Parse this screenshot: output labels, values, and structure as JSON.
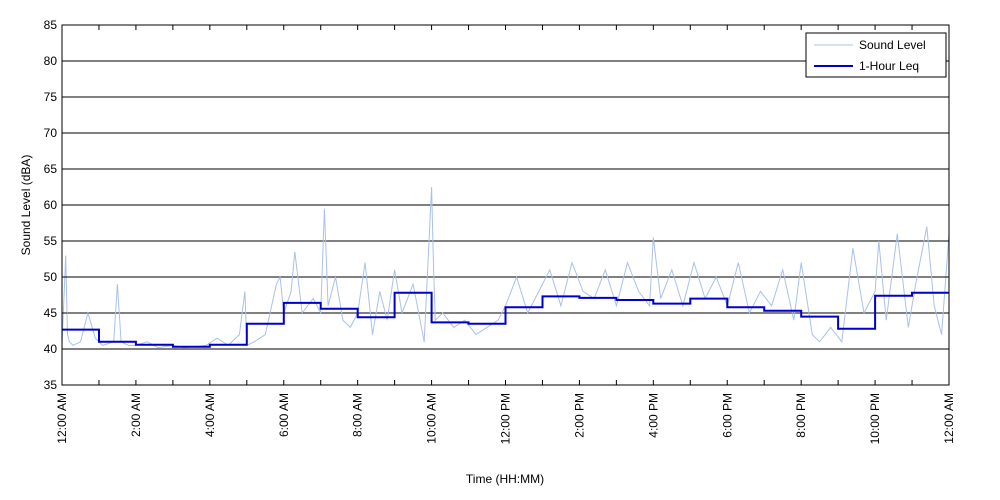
{
  "chart_data": {
    "type": "line",
    "xlabel": "Time (HH:MM)",
    "ylabel": "Sound Level (dBA)",
    "ylim": [
      35,
      85
    ],
    "yticks": [
      35,
      40,
      45,
      50,
      55,
      60,
      65,
      70,
      75,
      80,
      85
    ],
    "xlim": [
      0,
      24
    ],
    "xticks": [
      0,
      1,
      2,
      3,
      4,
      5,
      6,
      7,
      8,
      9,
      10,
      11,
      12,
      13,
      14,
      15,
      16,
      17,
      18,
      19,
      20,
      21,
      22,
      23,
      24
    ],
    "xtick_labels": [
      {
        "hour": 0,
        "label": "12:00 AM"
      },
      {
        "hour": 2,
        "label": "2:00 AM"
      },
      {
        "hour": 4,
        "label": "4:00 AM"
      },
      {
        "hour": 6,
        "label": "6:00 AM"
      },
      {
        "hour": 8,
        "label": "8:00 AM"
      },
      {
        "hour": 10,
        "label": "10:00 AM"
      },
      {
        "hour": 12,
        "label": "12:00 PM"
      },
      {
        "hour": 14,
        "label": "2:00 PM"
      },
      {
        "hour": 16,
        "label": "4:00 PM"
      },
      {
        "hour": 18,
        "label": "6:00 PM"
      },
      {
        "hour": 20,
        "label": "8:00 PM"
      },
      {
        "hour": 22,
        "label": "10:00 PM"
      },
      {
        "hour": 24,
        "label": "12:00 AM"
      }
    ],
    "grid": "horizontal",
    "legend_position": "top-right",
    "series": [
      {
        "name": "Sound Level",
        "color": "#a9c1ea",
        "style": "thin-line",
        "x": [
          0,
          0.1,
          0.15,
          0.2,
          0.3,
          0.5,
          0.7,
          0.9,
          1.1,
          1.4,
          1.5,
          1.6,
          1.8,
          2.0,
          2.3,
          2.6,
          3.0,
          3.3,
          3.6,
          3.9,
          4.2,
          4.5,
          4.8,
          4.95,
          5.0,
          5.2,
          5.5,
          5.8,
          5.9,
          6.0,
          6.2,
          6.3,
          6.5,
          6.8,
          7.0,
          7.1,
          7.2,
          7.4,
          7.6,
          7.8,
          8.0,
          8.2,
          8.4,
          8.6,
          8.8,
          9.0,
          9.2,
          9.5,
          9.8,
          10.0,
          10.05,
          10.1,
          10.3,
          10.6,
          10.9,
          11.2,
          11.5,
          11.8,
          12.0,
          12.3,
          12.6,
          12.9,
          13.2,
          13.5,
          13.8,
          14.1,
          14.4,
          14.7,
          15.0,
          15.3,
          15.6,
          15.9,
          16.0,
          16.2,
          16.5,
          16.8,
          17.1,
          17.4,
          17.7,
          18.0,
          18.3,
          18.6,
          18.9,
          19.2,
          19.5,
          19.8,
          20.0,
          20.3,
          20.5,
          20.8,
          21.1,
          21.4,
          21.7,
          22.0,
          22.1,
          22.3,
          22.6,
          22.9,
          23.1,
          23.4,
          23.6,
          23.8,
          24.0
        ],
        "values": [
          40.5,
          53,
          42,
          41,
          40.5,
          41,
          45,
          41.5,
          40.5,
          41,
          49,
          41,
          40.5,
          40.5,
          41,
          40.2,
          40.5,
          40.2,
          40.3,
          40.5,
          41.5,
          40.5,
          42,
          48,
          40.5,
          41,
          42,
          49,
          50,
          45,
          48,
          53.5,
          45,
          47,
          45,
          59.5,
          46,
          50,
          44,
          43,
          45,
          52,
          42,
          48,
          44,
          51,
          45,
          49,
          41,
          62.5,
          52,
          44,
          45,
          43,
          44,
          42,
          43,
          44,
          46,
          50,
          45,
          48,
          51,
          46,
          52,
          48,
          47,
          51,
          46,
          52,
          48,
          46,
          55.5,
          47,
          51,
          46,
          52,
          47,
          50,
          46,
          52,
          45,
          48,
          46,
          51,
          44,
          52,
          42,
          41,
          43,
          41,
          54,
          45,
          48,
          55,
          44,
          56,
          43,
          49,
          57,
          46,
          42,
          56
        ]
      },
      {
        "name": "1-Hour Leq",
        "color": "#0000cc",
        "style": "step",
        "values": [
          42.7,
          41.0,
          40.6,
          40.3,
          40.6,
          43.5,
          46.4,
          45.6,
          44.4,
          47.8,
          43.7,
          43.5,
          45.8,
          47.3,
          47.1,
          46.8,
          46.3,
          47.0,
          45.8,
          45.3,
          44.5,
          42.8,
          47.4,
          47.8
        ]
      }
    ]
  }
}
